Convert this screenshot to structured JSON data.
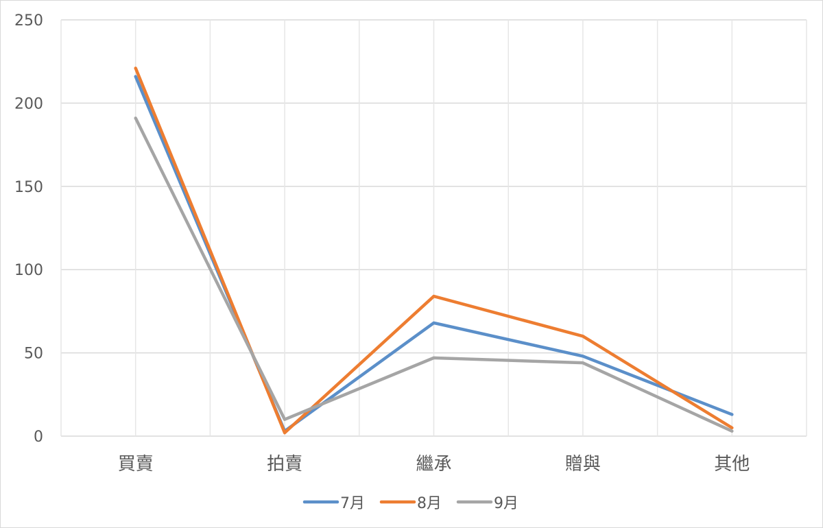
{
  "chart_data": {
    "type": "line",
    "categories": [
      "買賣",
      "拍賣",
      "繼承",
      "贈與",
      "其他"
    ],
    "series": [
      {
        "name": "7月",
        "color": "#5b8fc9",
        "values": [
          216,
          3,
          68,
          48,
          13
        ]
      },
      {
        "name": "8月",
        "color": "#ed7d31",
        "values": [
          221,
          2,
          84,
          60,
          5
        ]
      },
      {
        "name": "9月",
        "color": "#a5a5a5",
        "values": [
          191,
          10,
          47,
          44,
          3
        ]
      }
    ],
    "y_ticks": [
      "0",
      "50",
      "100",
      "150",
      "200",
      "250"
    ],
    "ylim": [
      0,
      250
    ],
    "grid": true,
    "legend_position": "bottom"
  }
}
